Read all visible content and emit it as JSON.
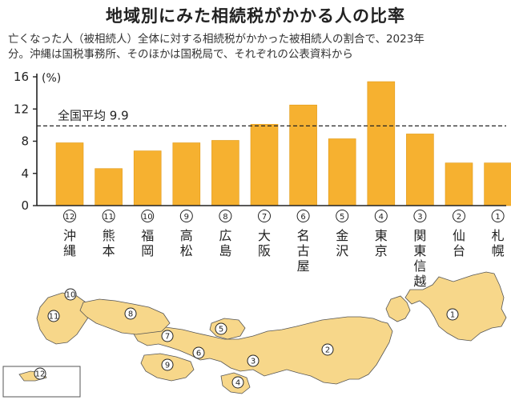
{
  "header": {
    "title": "地域別にみた相続税がかかる人の比率",
    "subtitle_line1": "亡くなった人（被相続人）全体に対する相続税がかかった被相続人の割合で、2023年",
    "subtitle_line2": "分。沖縄は国税事務所、そのほかは国税局で、それぞれの公表資料から"
  },
  "colors": {
    "bar": "#F6B130",
    "bar_stroke": "#E19A18",
    "map_land": "#F7D78A",
    "map_border": "#FFFFFF",
    "map_outline": "#555555",
    "axis": "#222222"
  },
  "chart_data": {
    "type": "bar",
    "unit_label": "(%)",
    "ylim": [
      0,
      16
    ],
    "yticks": [
      0,
      4,
      8,
      12,
      16
    ],
    "average": {
      "label": "全国平均",
      "value": 9.9,
      "value_label": "9.9"
    },
    "categories": [
      {
        "num": "⑫",
        "name": "沖縄"
      },
      {
        "num": "⑪",
        "name": "熊本"
      },
      {
        "num": "⑩",
        "name": "福岡"
      },
      {
        "num": "⑨",
        "name": "高松"
      },
      {
        "num": "⑧",
        "name": "広島"
      },
      {
        "num": "⑦",
        "name": "大阪"
      },
      {
        "num": "⑥",
        "name": "名古屋"
      },
      {
        "num": "⑤",
        "name": "金沢"
      },
      {
        "num": "④",
        "name": "東京"
      },
      {
        "num": "③",
        "name": "関東信越"
      },
      {
        "num": "②",
        "name": "仙台"
      },
      {
        "num": "①",
        "name": "札幌"
      }
    ],
    "values": [
      7.8,
      4.6,
      6.8,
      7.8,
      8.1,
      10.1,
      12.5,
      8.3,
      15.4,
      8.9,
      5.3,
      5.3
    ]
  },
  "map": {
    "markers": [
      "①",
      "②",
      "③",
      "④",
      "⑤",
      "⑥",
      "⑦",
      "⑧",
      "⑨",
      "⑩",
      "⑪",
      "⑫"
    ]
  }
}
